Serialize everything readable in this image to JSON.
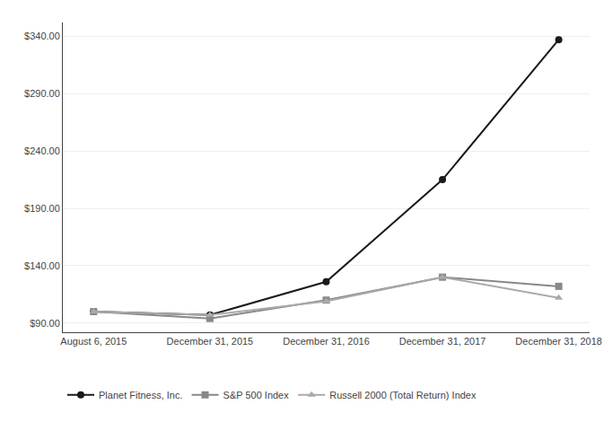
{
  "chart_data": {
    "type": "line",
    "categories": [
      "August 6, 2015",
      "December 31, 2015",
      "December 31, 2016",
      "December 31, 2017",
      "December 31, 2018"
    ],
    "series": [
      {
        "name": "Planet Fitness, Inc.",
        "color": "#1a1a1a",
        "marker": "circle",
        "line_style": "solid",
        "values": [
          100.0,
          97.0,
          126.0,
          215.0,
          337.0
        ]
      },
      {
        "name": "S&P 500 Index",
        "color": "#888888",
        "marker": "square",
        "line_style": "solid",
        "values": [
          100.0,
          94.0,
          110.0,
          130.0,
          122.0
        ]
      },
      {
        "name": "Russell 2000 (Total Return) Index",
        "color": "#aaaaaa",
        "marker": "triangle-up",
        "line_style": "solid",
        "values": [
          100.0,
          97.0,
          109.0,
          130.0,
          112.0
        ]
      }
    ],
    "ylim": [
      82,
      352
    ],
    "yticks": [
      {
        "value": 90,
        "label": "$90.00"
      },
      {
        "value": 140,
        "label": "$140.00"
      },
      {
        "value": 190,
        "label": "$190.00"
      },
      {
        "value": 240,
        "label": "$240.00"
      },
      {
        "value": 290,
        "label": "$290.00"
      },
      {
        "value": 340,
        "label": "$340.00"
      }
    ],
    "grid": true,
    "legend": "bottom"
  }
}
